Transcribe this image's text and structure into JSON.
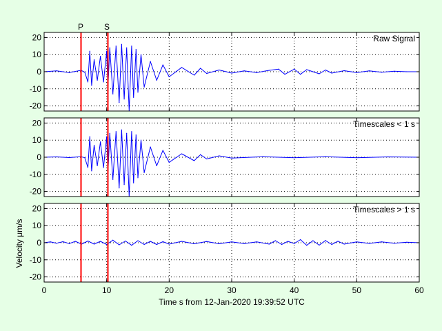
{
  "colors": {
    "figure_background": "#e6ffe6",
    "axes_background": "#ffffff",
    "trace": "#0000ff",
    "phase_line": "#ff0000",
    "axis": "#000000"
  },
  "phase_labels": [
    "P",
    "S"
  ],
  "xlabel": "Time s from 12-Jan-2020 19:39:52 UTC",
  "ylabel": "Velocity μm/s",
  "chart_data": [
    {
      "type": "line",
      "title": "Raw Signal",
      "xlim": [
        0,
        60
      ],
      "ylim": [
        -23,
        23
      ],
      "xticks": [
        0,
        10,
        20,
        30,
        40,
        50,
        60
      ],
      "yticks": [
        -20,
        -10,
        0,
        10,
        20
      ],
      "grid": true,
      "phase_picks": [
        {
          "label": "P",
          "x": 5.9
        },
        {
          "label": "S",
          "x": 10.2
        }
      ],
      "series": [
        {
          "x": [
            0,
            2,
            4,
            5.9,
            6.5,
            7,
            7.3,
            7.6,
            8,
            8.5,
            9,
            9.5,
            10,
            10.2,
            10.5,
            11,
            11.5,
            12,
            12.4,
            12.8,
            13.2,
            13.6,
            14,
            14.3,
            14.7,
            15,
            15.5,
            16,
            17,
            18,
            19,
            20,
            22,
            24,
            25,
            26,
            28,
            30,
            32,
            34,
            36,
            37.5,
            38.5,
            40,
            41,
            42,
            44,
            45,
            46,
            48,
            50,
            52,
            54,
            56,
            58,
            60
          ],
          "values": [
            0,
            0.5,
            -0.5,
            0.8,
            -0.3,
            -6,
            12,
            -8,
            7,
            -5,
            9,
            -6,
            12,
            -10,
            14,
            -13,
            15,
            -18,
            16,
            -16,
            14,
            -23,
            15,
            -15,
            13,
            -12,
            10,
            -9,
            6,
            -5,
            4,
            -3,
            2.5,
            -2,
            2,
            -1,
            1,
            -0.8,
            0.5,
            -0.5,
            0.8,
            1.5,
            -1.5,
            1.5,
            -1.5,
            1.2,
            -1.2,
            1,
            -0.8,
            0.6,
            -0.5,
            0.5,
            -0.3,
            0.3,
            0,
            0
          ]
        }
      ]
    },
    {
      "type": "line",
      "title": "Timescales < 1 s",
      "xlim": [
        0,
        60
      ],
      "ylim": [
        -23,
        23
      ],
      "xticks": [
        0,
        10,
        20,
        30,
        40,
        50,
        60
      ],
      "yticks": [
        -20,
        -10,
        0,
        10,
        20
      ],
      "grid": true,
      "phase_picks": [
        {
          "label": "P",
          "x": 5.9
        },
        {
          "label": "S",
          "x": 10.2
        }
      ],
      "series": [
        {
          "x": [
            0,
            2,
            4,
            5.9,
            6.5,
            7,
            7.3,
            7.6,
            8,
            8.5,
            9,
            9.5,
            10,
            10.2,
            10.5,
            11,
            11.5,
            12,
            12.4,
            12.8,
            13.2,
            13.6,
            14,
            14.3,
            14.7,
            15,
            15.5,
            16,
            17,
            18,
            19,
            20,
            22,
            24,
            25,
            26,
            28,
            30,
            35,
            40,
            45,
            50,
            55,
            60
          ],
          "values": [
            0,
            0.2,
            -0.2,
            0.3,
            -0.3,
            -6,
            12,
            -8,
            7,
            -5,
            9,
            -6,
            12,
            -10,
            14,
            -13,
            15,
            -18,
            16,
            -16,
            14,
            -23,
            15,
            -15,
            13,
            -12,
            10,
            -9,
            6,
            -5,
            4,
            -3,
            2,
            -2,
            1.5,
            -1,
            0.8,
            -0.5,
            0.3,
            -0.3,
            0.3,
            -0.3,
            0.2,
            0
          ]
        }
      ]
    },
    {
      "type": "line",
      "title": "Timescales > 1 s",
      "xlim": [
        0,
        60
      ],
      "ylim": [
        -23,
        23
      ],
      "xticks": [
        0,
        10,
        20,
        30,
        40,
        50,
        60
      ],
      "yticks": [
        -20,
        -10,
        0,
        10,
        20
      ],
      "grid": true,
      "phase_picks": [
        {
          "label": "P",
          "x": 5.9
        },
        {
          "label": "S",
          "x": 10.2
        }
      ],
      "series": [
        {
          "x": [
            0,
            1,
            2,
            3,
            4,
            5,
            6,
            7,
            8,
            9,
            10,
            11,
            12,
            13,
            14,
            15,
            16,
            17,
            18,
            19,
            20,
            22,
            24,
            26,
            28,
            30,
            32,
            34,
            36,
            37,
            38,
            39,
            40,
            41,
            42,
            43,
            44,
            45,
            46,
            47,
            48,
            50,
            52,
            54,
            56,
            58,
            60
          ],
          "values": [
            0,
            0.5,
            -0.3,
            0.6,
            -0.5,
            0.8,
            -0.8,
            1,
            -0.8,
            0.8,
            -1,
            1.5,
            -1.2,
            1,
            -1.5,
            1.2,
            -1,
            0.8,
            -1,
            0.6,
            -0.8,
            0.8,
            -0.6,
            0.7,
            -0.6,
            0.5,
            -0.5,
            0.5,
            -0.8,
            1.2,
            -1,
            0.8,
            -0.5,
            1.8,
            -1.5,
            1.2,
            -1.4,
            1.3,
            -1,
            0.9,
            -0.8,
            0.5,
            -0.4,
            0.5,
            -0.3,
            0.3,
            0
          ]
        }
      ]
    }
  ]
}
